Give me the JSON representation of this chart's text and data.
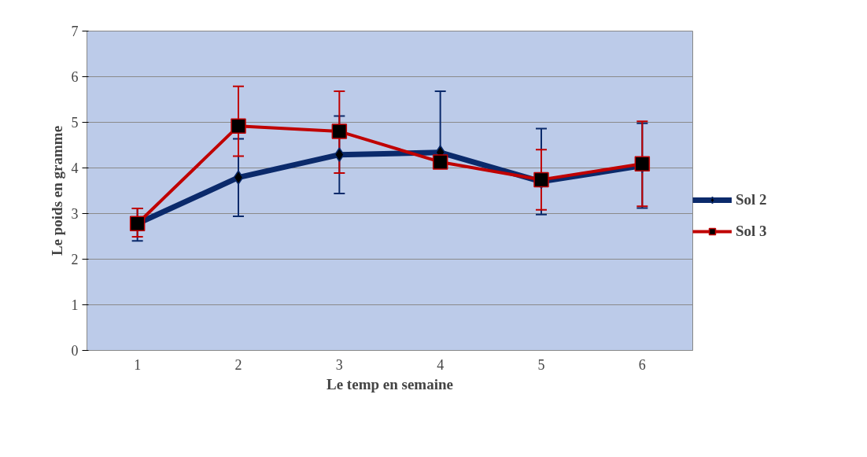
{
  "chart_data": {
    "type": "line",
    "xlabel": "Le temp en semaine",
    "ylabel": "Le poids en gramme",
    "categories": [
      "1",
      "2",
      "3",
      "4",
      "5",
      "6"
    ],
    "ylim": [
      0,
      7
    ],
    "yticks": [
      0,
      1,
      2,
      3,
      4,
      5,
      6,
      7
    ],
    "grid": "y",
    "legend": "right",
    "line_style": "solid",
    "series": [
      {
        "name": "Sol 2",
        "color": "#0b2a6b",
        "marker": "diamond",
        "values": [
          2.78,
          3.79,
          4.29,
          4.34,
          3.7,
          4.05
        ],
        "errors": [
          [
            2.4,
            3.11
          ],
          [
            2.94,
            4.64
          ],
          [
            3.44,
            5.14
          ],
          [
            4.34,
            5.68
          ],
          [
            2.98,
            4.86
          ],
          [
            3.12,
            4.98
          ]
        ]
      },
      {
        "name": "Sol 3",
        "color": "#c00000",
        "marker": "square",
        "values": [
          2.78,
          4.92,
          4.8,
          4.13,
          3.74,
          4.09
        ],
        "errors": [
          [
            2.49,
            3.11
          ],
          [
            4.26,
            5.79
          ],
          [
            3.89,
            5.68
          ],
          null,
          [
            3.08,
            4.4
          ],
          [
            3.16,
            5.02
          ]
        ]
      }
    ]
  }
}
